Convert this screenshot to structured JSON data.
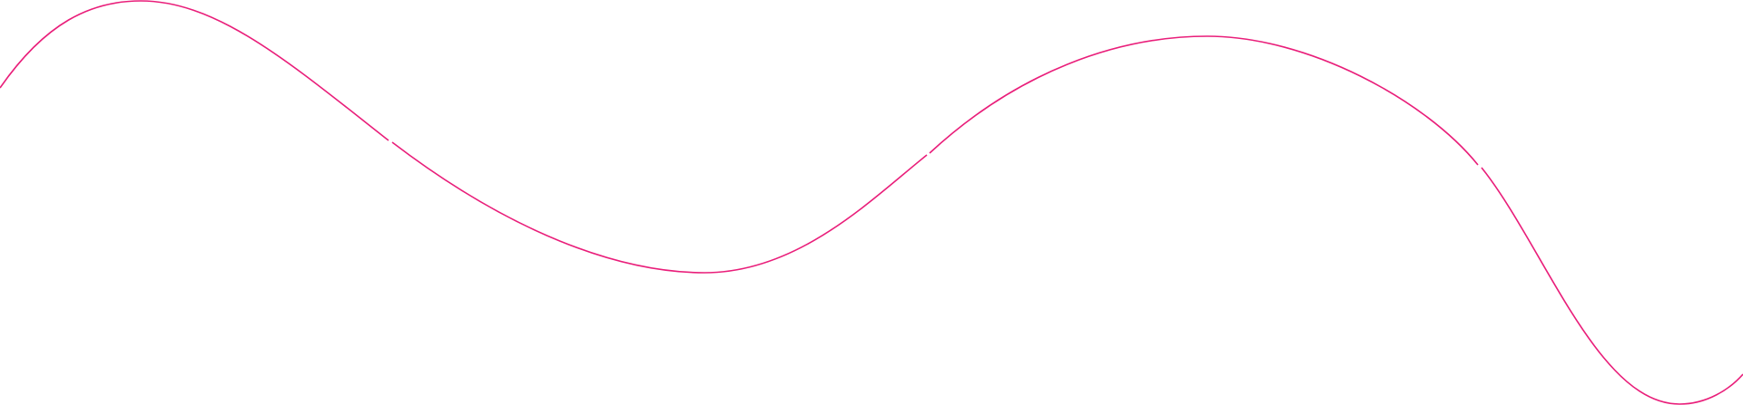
{
  "decoration": {
    "type": "wave-line",
    "stroke_color": "#e91e7a",
    "background_color": "#ffffff"
  }
}
